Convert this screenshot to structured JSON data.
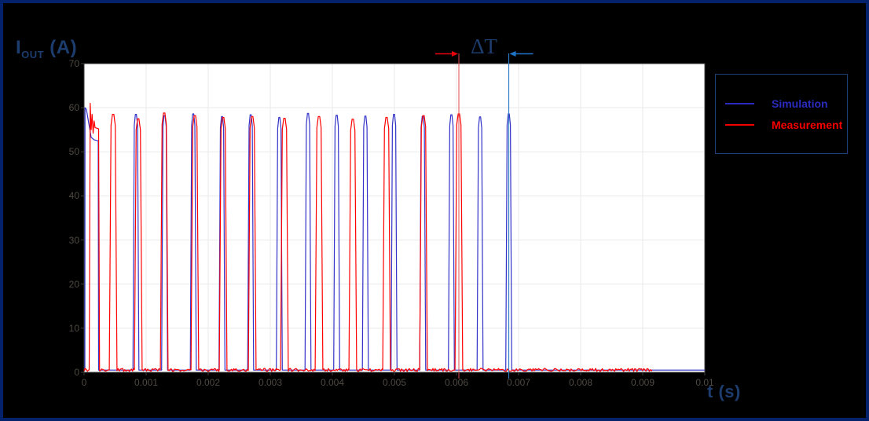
{
  "title": {
    "main": "I",
    "sub": "OUT",
    "unit": " (A)"
  },
  "xlabel": "t (s)",
  "annotation": {
    "label": "ΔT",
    "text_color": "#1c3d6e",
    "red_line_color": "#e34b4b",
    "blue_line_color": "#2e7cc3",
    "red_arrow_color": "#e8000d",
    "blue_arrow_color": "#1f74c8"
  },
  "legend": {
    "items": [
      {
        "label": "Simulation",
        "color": "#2b2bbf"
      },
      {
        "label": "Measurement",
        "color": "#f50000"
      }
    ]
  },
  "chart_data": {
    "type": "line",
    "title": "",
    "xlabel": "t (s)",
    "ylabel": "I_OUT (A)",
    "xlim": [
      0,
      0.01
    ],
    "ylim": [
      0,
      70
    ],
    "grid": true,
    "legend_position": "upper-right-outside",
    "x_ticks": [
      0,
      0.001,
      0.002,
      0.003,
      0.004,
      0.005,
      0.006,
      0.007,
      0.008,
      0.009,
      0.01
    ],
    "x_tick_labels": [
      "0",
      "0.001",
      "0.002",
      "0.003",
      "0.004",
      "0.005",
      "0.006",
      "0.007",
      "0.008",
      "0.009",
      "0.01"
    ],
    "y_ticks": [
      0,
      10,
      20,
      30,
      40,
      50,
      60,
      70
    ],
    "y_tick_labels": [
      "0",
      "10",
      "20",
      "30",
      "40",
      "50",
      "60",
      "70"
    ],
    "series": [
      {
        "name": "Simulation",
        "color": "#3232c8",
        "baseline": 0.5,
        "baseline_noise": 0,
        "trace_end_t": 0.01,
        "first_pulse": [
          [
            1.3e-05,
            0.5
          ],
          [
            1.5e-05,
            60
          ],
          [
            3.8e-05,
            59.6
          ],
          [
            0.000114,
            53.3
          ],
          [
            0.000165,
            52.7
          ],
          [
            0.000228,
            52.5
          ],
          [
            0.000234,
            0.5
          ]
        ],
        "pulses": {
          "half_width": 4.8e-05,
          "centers": [
            0.000835,
            0.001297,
            0.001759,
            0.002222,
            0.002684,
            0.003146,
            0.003608,
            0.00407,
            0.004532,
            0.004994,
            0.005456,
            0.005918,
            0.00638,
            0.006842
          ],
          "peaks": [
            58.5,
            58.2,
            58.6,
            58.0,
            58.4,
            57.8,
            58.7,
            58.3,
            58.1,
            58.5,
            58.0,
            58.4,
            57.9,
            58.6
          ]
        }
      },
      {
        "name": "Measurement",
        "color": "#ff0000",
        "baseline": 0.55,
        "baseline_noise": 0.35,
        "trace_end_t": 0.00915,
        "first_pulse": [
          [
            8.2e-05,
            0.55
          ],
          [
            9.9e-05,
            61
          ],
          [
            0.000114,
            55
          ],
          [
            0.000129,
            58.5
          ],
          [
            0.000146,
            54.2
          ],
          [
            0.000162,
            57
          ],
          [
            0.000177,
            55.5
          ],
          [
            0.000234,
            55.2
          ],
          [
            0.000249,
            0.55
          ]
        ],
        "pulses": {
          "half_width": 6.2e-05,
          "centers": [
            0.000468,
            0.000873,
            0.001291,
            0.001785,
            0.002241,
            0.002709,
            0.003228,
            0.003785,
            0.004329,
            0.004873,
            0.005468,
            0.006038
          ],
          "peaks": [
            58.5,
            57.5,
            58.8,
            58.2,
            57.8,
            58.0,
            57.6,
            58.0,
            57.4,
            57.8,
            58.2,
            58.6
          ]
        }
      }
    ],
    "delta_t_annotation": {
      "label": "ΔT",
      "measurement_last_pulse_t": 0.006038,
      "simulation_last_pulse_t": 0.006842
    }
  }
}
